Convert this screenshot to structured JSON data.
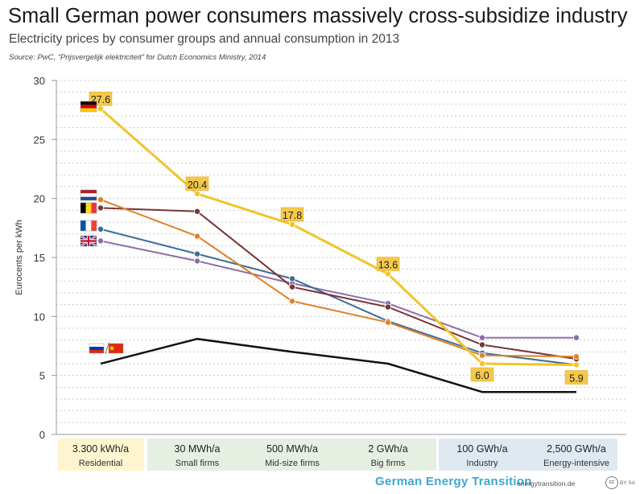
{
  "title": "Small German power consumers massively cross-subsidize industry",
  "subtitle": "Electricity prices by consumer groups and annual consumption in 2013",
  "source": "Source: PwC, “Prijsvergelijk elektriciteit” for Dutch Economics Ministry, 2014",
  "footer": {
    "brand": "German Energy Transition",
    "site": "energytransition.de",
    "license_badge": "cc",
    "license_text": "BY SA"
  },
  "chart_data": {
    "type": "line",
    "ylabel": "Eurocents per kWh",
    "ylim": [
      0,
      30
    ],
    "yticks": [
      0,
      5,
      10,
      15,
      20,
      25,
      30
    ],
    "grid": "horizontal dotted",
    "categories": [
      {
        "top": "3.300 kWh/a",
        "bottom": "Residential",
        "group": "residential"
      },
      {
        "top": "30 MWh/a",
        "bottom": "Small firms",
        "group": "business"
      },
      {
        "top": "500 MWh/a",
        "bottom": "Mid-size firms",
        "group": "business"
      },
      {
        "top": "2 GWh/a",
        "bottom": "Big firms",
        "group": "business"
      },
      {
        "top": "100 GWh/a",
        "bottom": "Industry",
        "group": "industry"
      },
      {
        "top": "2,500 GWh/a",
        "bottom": "Energy-intensive",
        "group": "industry"
      }
    ],
    "category_colors": {
      "residential": "#fdf5cf",
      "business": "#e5f0e3",
      "industry": "#dfe9f2"
    },
    "series": [
      {
        "flag": "russia-china",
        "color": "#111111",
        "values": [
          6.0,
          8.1,
          7.0,
          6.0,
          3.6,
          3.6
        ],
        "dots": false
      },
      {
        "flag": "united-kingdom",
        "color": "#8a6fa6",
        "values": [
          16.4,
          14.7,
          12.8,
          11.1,
          8.2,
          8.2
        ],
        "dots": true
      },
      {
        "flag": "france",
        "color": "#3f6d99",
        "values": [
          17.4,
          15.3,
          13.2,
          9.6,
          6.9,
          5.9
        ],
        "dots": true
      },
      {
        "flag": "belgium",
        "color": "#7a3535",
        "values": [
          19.2,
          18.9,
          12.5,
          10.8,
          7.6,
          6.4
        ],
        "dots": true
      },
      {
        "flag": "netherlands",
        "color": "#e08128",
        "values": [
          19.9,
          16.8,
          11.3,
          9.5,
          6.7,
          6.6
        ],
        "dots": true
      },
      {
        "flag": "germany",
        "color": "#f1c42b",
        "values": [
          27.6,
          20.4,
          17.8,
          13.6,
          6.0,
          5.9
        ],
        "dots": true,
        "labels": [
          "27.6",
          "20.4",
          "17.8",
          "13.6",
          "6.0",
          "5.9"
        ]
      }
    ]
  }
}
